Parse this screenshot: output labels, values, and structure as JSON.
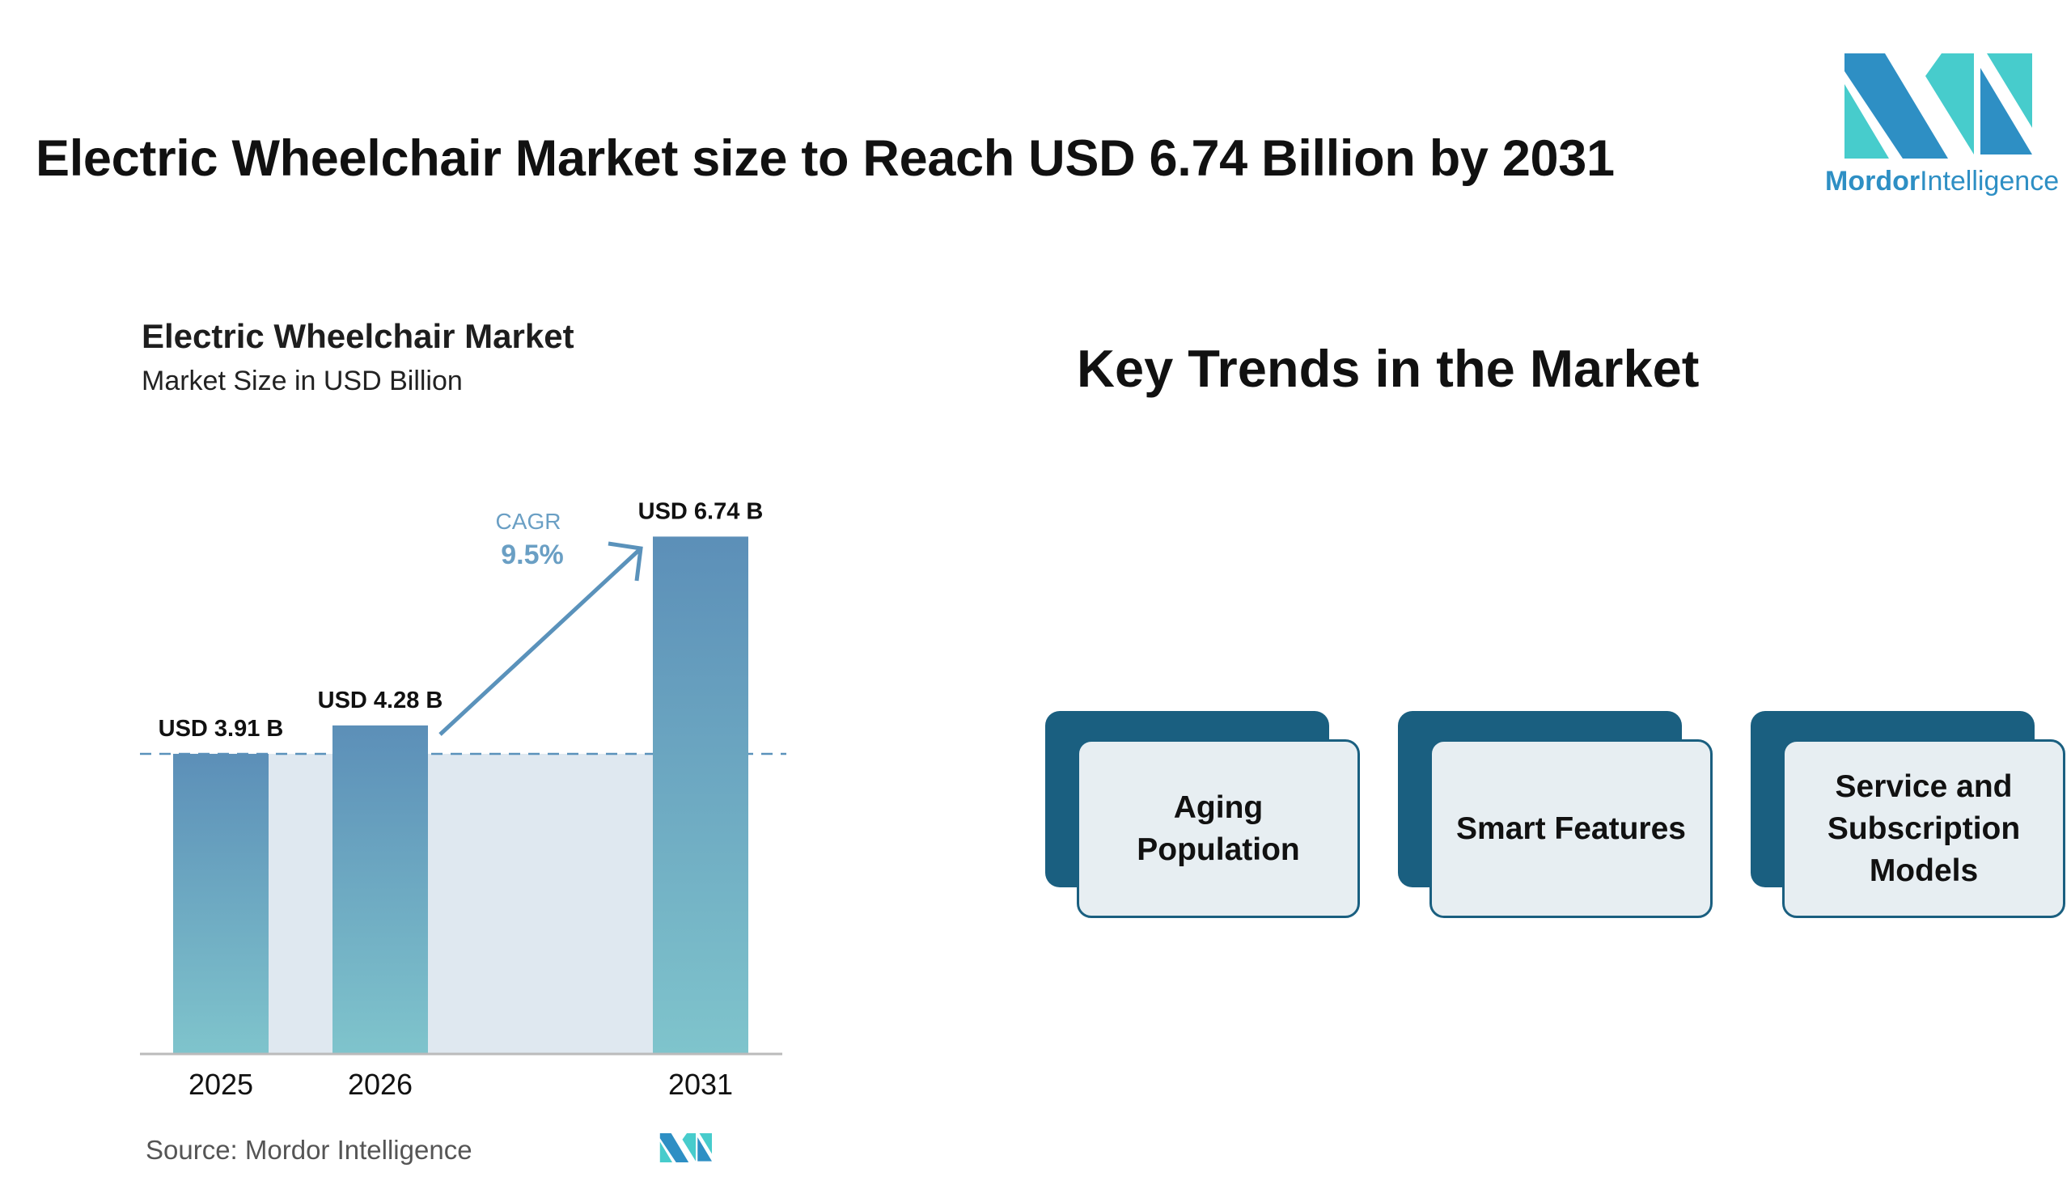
{
  "header": {
    "title": "Electric Wheelchair Market size to Reach USD 6.74 Billion by 2031"
  },
  "logo": {
    "brand_bold": "Mordor",
    "brand_light": "Intelligence",
    "colors": {
      "dark": "#2e8fc4",
      "light": "#47cccc"
    }
  },
  "chart_data": {
    "type": "bar",
    "title": "Electric Wheelchair Market",
    "subtitle": "Market Size in USD Billion",
    "categories": [
      "2025",
      "2026",
      "2031"
    ],
    "values": [
      3.91,
      4.28,
      6.74
    ],
    "data_labels": [
      "USD 3.91 B",
      "USD 4.28 B",
      "USD 6.74 B"
    ],
    "annotation": {
      "label": "CAGR",
      "value": "9.5%"
    },
    "ylim": [
      0,
      6.74
    ],
    "grid": false,
    "colors": {
      "bar_top": "#5c8fb8",
      "bar_bottom": "#7fc4cc",
      "fill": "#dfe8f0",
      "arrow": "#5a92bb"
    }
  },
  "source": "Source:  Mordor Intelligence",
  "trends": {
    "title": "Key Trends in the Market",
    "items": [
      {
        "label": "Aging Population"
      },
      {
        "label": "Smart Features"
      },
      {
        "label": "Service and Subscription Models"
      }
    ],
    "colors": {
      "dark": "#1a5f80",
      "light": "#e7eef2"
    }
  }
}
